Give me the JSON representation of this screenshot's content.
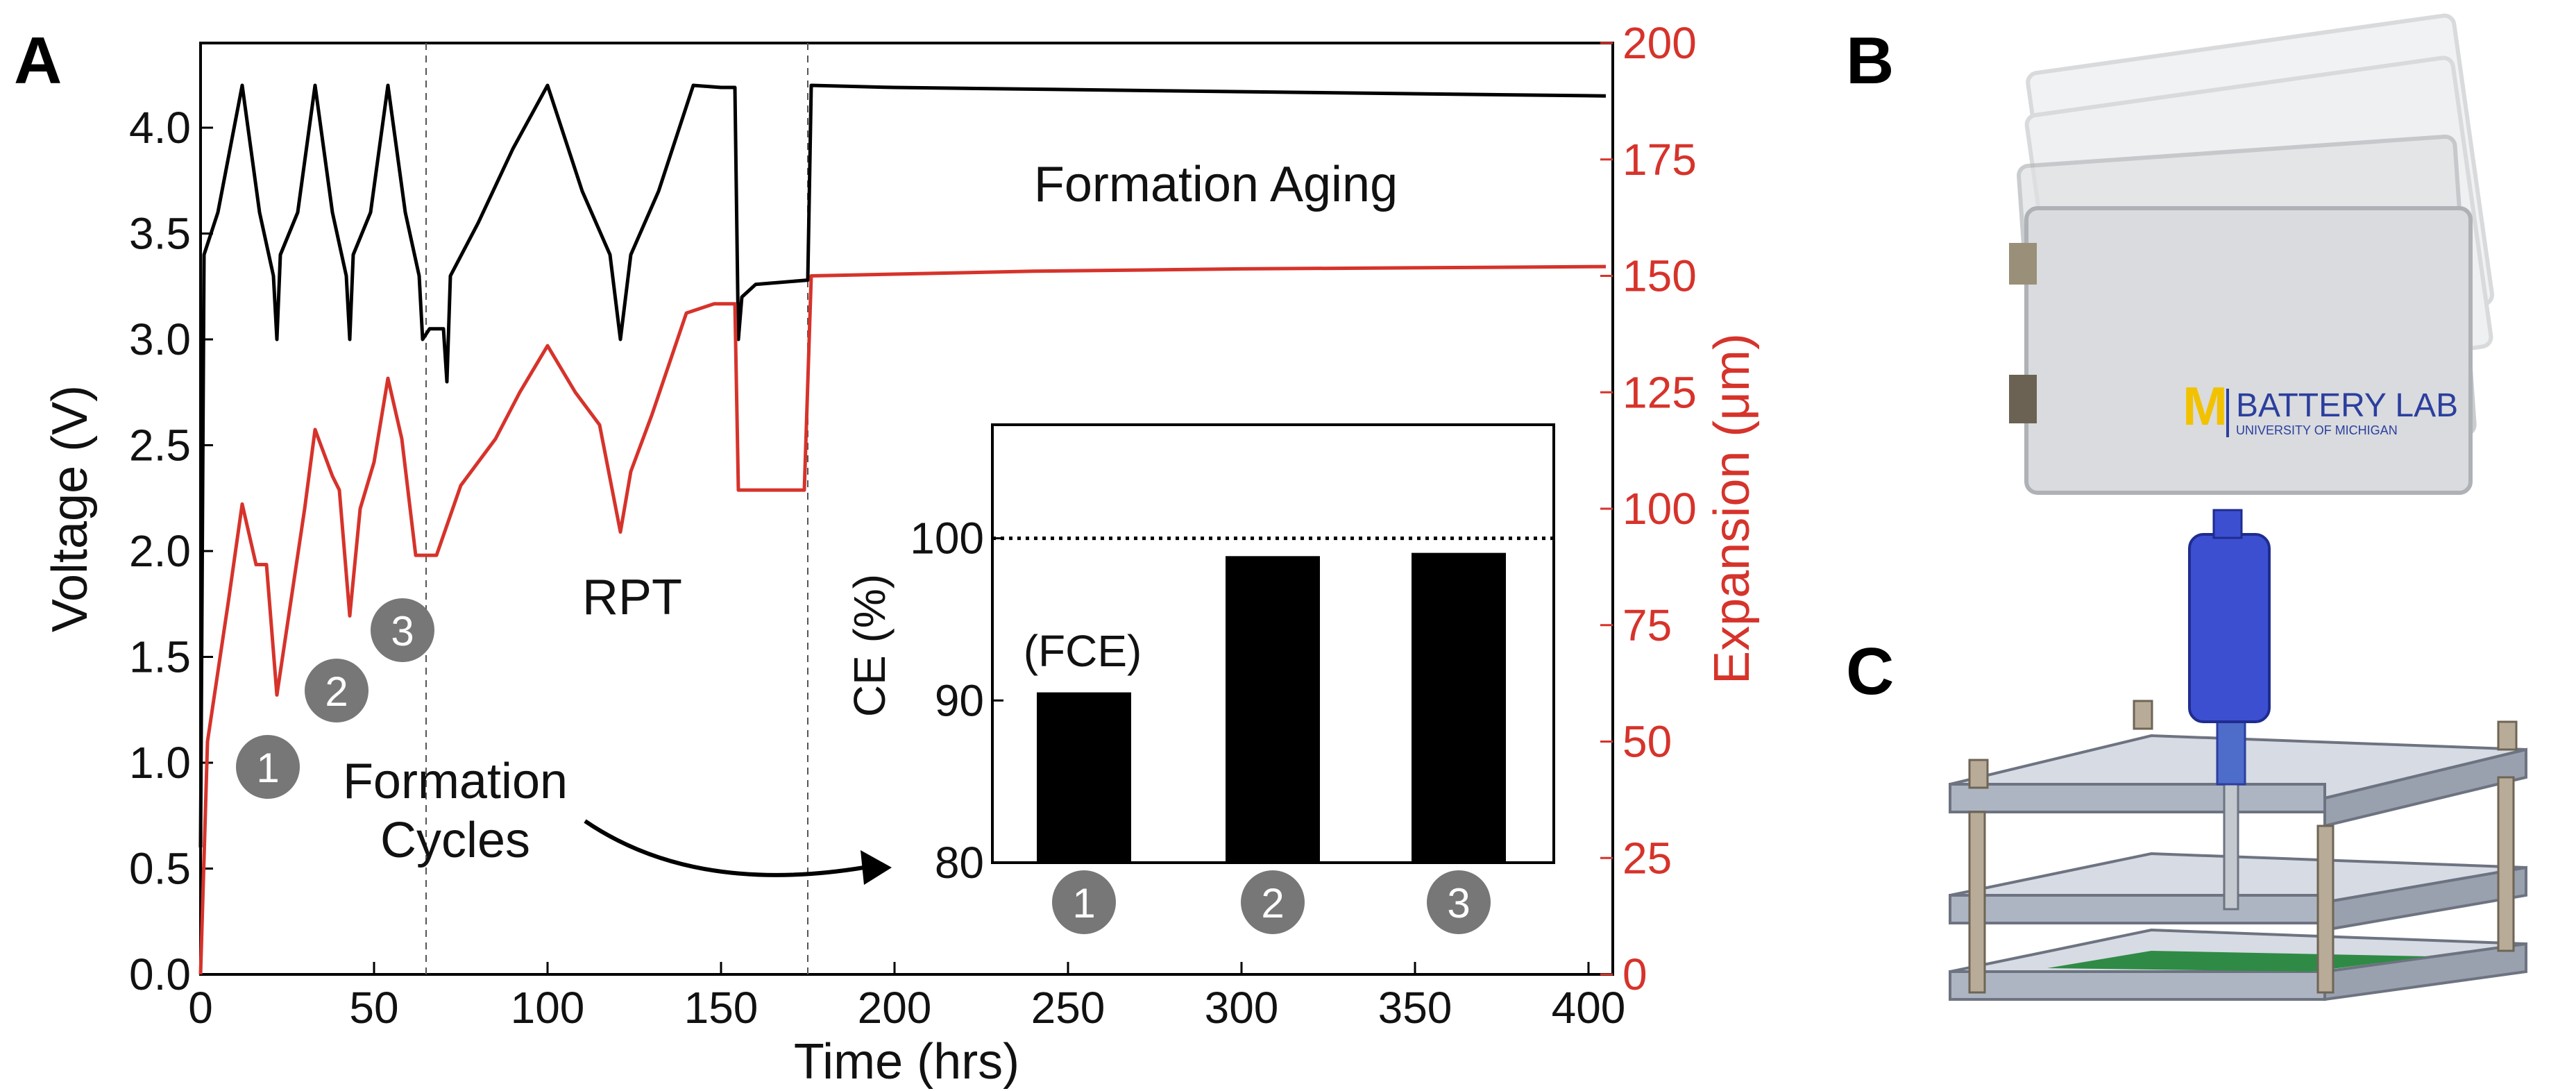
{
  "panels": {
    "a": "A",
    "b": "B",
    "c": "C"
  },
  "logo": {
    "brand": "M",
    "line1": "BATTERY LAB",
    "line2": "UNIVERSITY OF MICHIGAN"
  },
  "colors": {
    "voltage": "#000000",
    "expansion": "#d6332b",
    "bars": "#000000",
    "marker": "#777777"
  },
  "chart_data": [
    {
      "type": "line",
      "xlabel": "Time (hrs)",
      "ylabel": "Voltage (V)",
      "y2label": "Expansion (μm)",
      "xlim": [
        0,
        407
      ],
      "ylim": [
        0,
        4.4
      ],
      "y2lim": [
        0,
        200
      ],
      "xticks": [
        "0",
        "50",
        "100",
        "150",
        "200",
        "250",
        "300",
        "350",
        "400"
      ],
      "yticks": [
        "0.0",
        "0.5",
        "1.0",
        "1.5",
        "2.0",
        "2.5",
        "3.0",
        "3.5",
        "4.0"
      ],
      "y2ticks": [
        "0",
        "25",
        "50",
        "75",
        "100",
        "125",
        "150",
        "175",
        "200"
      ],
      "vlines": [
        65,
        175
      ],
      "annotations": {
        "formation_aging": "Formation Aging",
        "rpt": "RPT",
        "formation_cycles_1": "Formation",
        "formation_cycles_2": "Cycles",
        "cycle_markers": [
          "1",
          "2",
          "3"
        ]
      },
      "series": [
        {
          "axis": "left",
          "x": [
            0,
            1,
            5,
            12,
            17,
            21,
            22,
            23,
            28,
            33,
            38,
            42,
            43,
            44,
            49,
            54,
            59,
            63,
            64,
            66,
            70,
            71,
            72,
            80,
            90,
            100,
            110,
            118,
            121,
            124,
            132,
            142,
            150,
            154,
            155,
            156,
            160,
            175,
            176,
            200,
            300,
            405
          ],
          "y": [
            0.6,
            3.4,
            3.6,
            4.2,
            3.6,
            3.3,
            3.0,
            3.4,
            3.6,
            4.2,
            3.6,
            3.3,
            3.0,
            3.4,
            3.6,
            4.2,
            3.6,
            3.3,
            3.0,
            3.05,
            3.05,
            2.8,
            3.3,
            3.55,
            3.9,
            4.2,
            3.7,
            3.4,
            3.0,
            3.4,
            3.7,
            4.2,
            4.19,
            4.19,
            3.0,
            3.2,
            3.26,
            3.28,
            4.2,
            4.19,
            4.17,
            4.15
          ]
        },
        {
          "axis": "right",
          "x": [
            0,
            2,
            5,
            8,
            12,
            16,
            19,
            22,
            26,
            30,
            33,
            38,
            40,
            43,
            46,
            50,
            54,
            58,
            62,
            68,
            75,
            85,
            92,
            100,
            108,
            115,
            121,
            124,
            130,
            140,
            148,
            154,
            155,
            174,
            176,
            240,
            300,
            405
          ],
          "y": [
            0,
            50,
            65,
            80,
            101,
            88,
            88,
            60,
            80,
            100,
            117,
            107,
            104,
            77,
            100,
            110,
            128,
            115,
            90,
            90,
            105,
            115,
            125,
            135,
            125,
            118,
            95,
            108,
            120,
            142,
            144,
            144,
            104,
            104,
            150,
            151,
            151.5,
            152
          ]
        }
      ]
    },
    {
      "type": "bar",
      "ylabel": "CE (%)",
      "categories": [
        "1",
        "2",
        "3"
      ],
      "values": [
        90.5,
        98.9,
        99.1
      ],
      "ylim": [
        80,
        107
      ],
      "yticks": [
        "80",
        "90",
        "100"
      ],
      "hline": 100,
      "annotation": "(FCE)"
    }
  ]
}
